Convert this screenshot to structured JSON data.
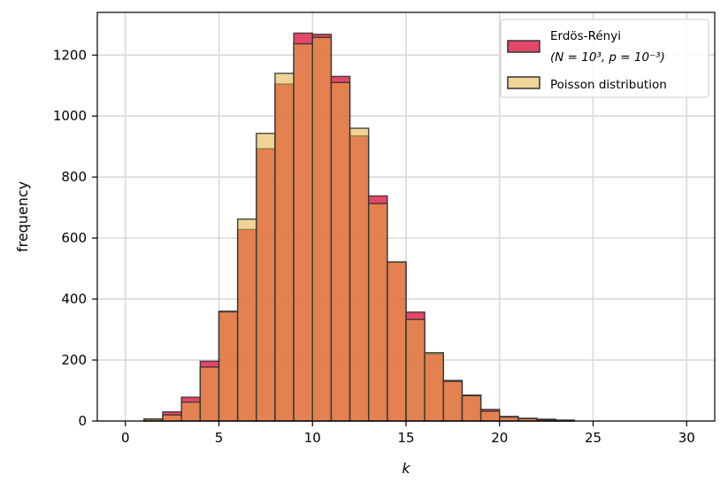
{
  "chart_data": {
    "type": "bar",
    "xlabel": "k",
    "ylabel": "frequency",
    "xlim": [
      -1.5,
      31.5
    ],
    "ylim": [
      0,
      1340
    ],
    "xticks": [
      0,
      5,
      10,
      15,
      20,
      25,
      30
    ],
    "yticks": [
      0,
      200,
      400,
      600,
      800,
      1000,
      1200
    ],
    "grid": true,
    "legend_position": "top-right",
    "bin_width": 1,
    "series": [
      {
        "name": "Erdös-Rényi",
        "name_line2": "(N = 10³, p = 10⁻³)",
        "color": "#dc143c",
        "bins": [
          {
            "x": 1,
            "value": 5
          },
          {
            "x": 2,
            "value": 30
          },
          {
            "x": 3,
            "value": 78
          },
          {
            "x": 4,
            "value": 196
          },
          {
            "x": 5,
            "value": 360
          },
          {
            "x": 6,
            "value": 628
          },
          {
            "x": 7,
            "value": 893
          },
          {
            "x": 8,
            "value": 1105
          },
          {
            "x": 9,
            "value": 1272
          },
          {
            "x": 10,
            "value": 1268
          },
          {
            "x": 11,
            "value": 1130
          },
          {
            "x": 12,
            "value": 935
          },
          {
            "x": 13,
            "value": 738
          },
          {
            "x": 14,
            "value": 520
          },
          {
            "x": 15,
            "value": 357
          },
          {
            "x": 16,
            "value": 220
          },
          {
            "x": 17,
            "value": 133
          },
          {
            "x": 18,
            "value": 85
          },
          {
            "x": 19,
            "value": 38
          },
          {
            "x": 20,
            "value": 15
          },
          {
            "x": 21,
            "value": 9
          },
          {
            "x": 22,
            "value": 6
          },
          {
            "x": 23,
            "value": 3
          }
        ]
      },
      {
        "name": "Poisson distribution",
        "color": "#e1b040",
        "bins": [
          {
            "x": 1,
            "value": 7
          },
          {
            "x": 2,
            "value": 20
          },
          {
            "x": 3,
            "value": 62
          },
          {
            "x": 4,
            "value": 177
          },
          {
            "x": 5,
            "value": 358
          },
          {
            "x": 6,
            "value": 662
          },
          {
            "x": 7,
            "value": 943
          },
          {
            "x": 8,
            "value": 1140
          },
          {
            "x": 9,
            "value": 1237
          },
          {
            "x": 10,
            "value": 1258
          },
          {
            "x": 11,
            "value": 1110
          },
          {
            "x": 12,
            "value": 960
          },
          {
            "x": 13,
            "value": 713
          },
          {
            "x": 14,
            "value": 522
          },
          {
            "x": 15,
            "value": 333
          },
          {
            "x": 16,
            "value": 224
          },
          {
            "x": 17,
            "value": 130
          },
          {
            "x": 18,
            "value": 83
          },
          {
            "x": 19,
            "value": 32
          },
          {
            "x": 20,
            "value": 13
          },
          {
            "x": 21,
            "value": 8
          },
          {
            "x": 22,
            "value": 4
          },
          {
            "x": 23,
            "value": 2
          }
        ]
      }
    ]
  }
}
